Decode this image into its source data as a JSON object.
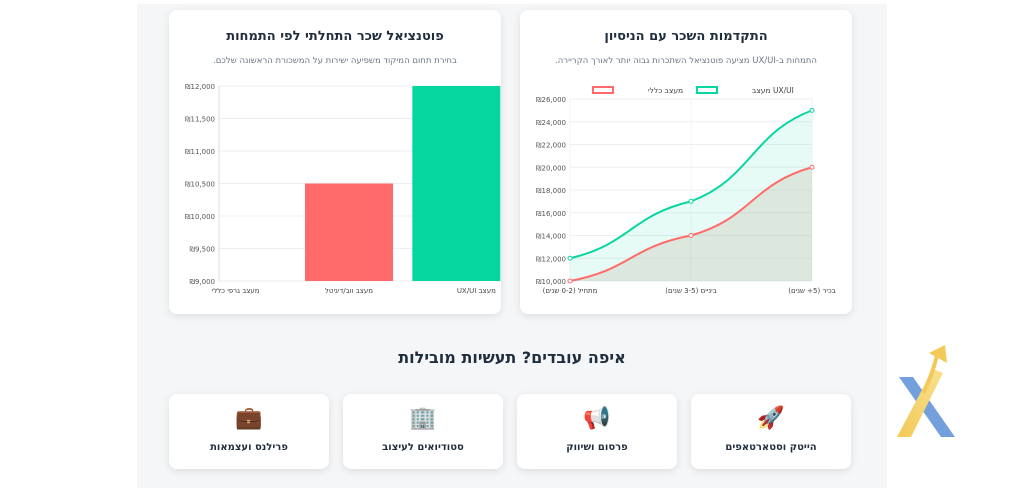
{
  "left_card": {
    "title": "פוטנציאל שכר התחלתי לפי התמחות",
    "subtitle": "בחירת תחום המיקוד משפיעה ישירות על המשכורת הראשונה שלכם."
  },
  "right_card": {
    "title": "התקדמות השכר עם הניסיון",
    "subtitle": "התמחות ב-UX/UI מציעה פוטנציאל השתכרות גבוה יותר לאורך הקריירה."
  },
  "chart_data": [
    {
      "type": "bar",
      "categories": [
        "מעצב UX/UI",
        "מעצב ווב/דיגיטל",
        "מעצב גרפי כללי"
      ],
      "values": [
        12000,
        10500,
        9000
      ],
      "ylim": [
        9000,
        12000
      ],
      "yticks": [
        "₪12,000",
        "₪11,500",
        "₪11,000",
        "₪10,500",
        "₪10,000",
        "₪9,500",
        "₪9,000"
      ],
      "colors": [
        "#06d6a0",
        "#ff6b6b",
        "#ff6b6b"
      ],
      "grid": true
    },
    {
      "type": "area",
      "categories": [
        "מתחיל (0-2 שנים)",
        "ביניים (3-5 שנים)",
        "בכיר (5+ שנים)"
      ],
      "series": [
        {
          "name": "UX/UI מעצב",
          "values": [
            12000,
            17000,
            25000
          ],
          "color": "#06d6a0"
        },
        {
          "name": "מעצב כללי",
          "values": [
            10000,
            14000,
            20000
          ],
          "color": "#ff6b6b"
        }
      ],
      "ylim": [
        10000,
        26000
      ],
      "yticks": [
        "₪26,000",
        "₪24,000",
        "₪22,000",
        "₪20,000",
        "₪18,000",
        "₪16,000",
        "₪14,000",
        "₪12,000",
        "₪10,000"
      ],
      "legend": "top-center",
      "grid": true
    }
  ],
  "industries": {
    "title": "איפה עובדים? תעשיות מובילות",
    "items": [
      {
        "label": "פרילנס ועצמאות",
        "icon": "💼"
      },
      {
        "label": "סטודיואים לעיצוב",
        "icon": "🏢"
      },
      {
        "label": "פרסום ושיווק",
        "icon": "📢"
      },
      {
        "label": "הייטק וסטארטאפים",
        "icon": "🚀"
      }
    ]
  },
  "logo": {
    "name": "x-arrow-logo",
    "colors": [
      "#5b8fd6",
      "#f3c95a"
    ]
  }
}
